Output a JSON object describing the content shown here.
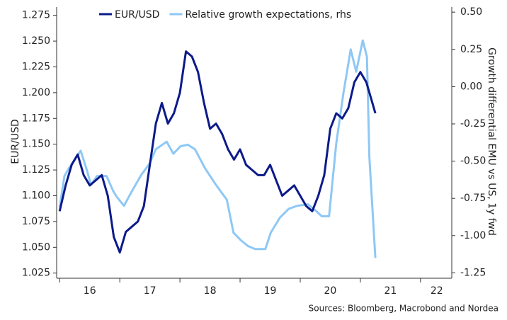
{
  "chart_data": {
    "type": "line",
    "y_axis_label": "EUR/USD",
    "y2_axis_label": "Growth differential EMU vs US, 1y fwd",
    "source": "Sources: Bloomberg, Macrobond and Nordea",
    "legend": "top",
    "xlim": [
      2015.95,
      2022.52
    ],
    "xticks": [
      {
        "value": 2016.5,
        "label": "16"
      },
      {
        "value": 2017.5,
        "label": "17"
      },
      {
        "value": 2018.5,
        "label": "18"
      },
      {
        "value": 2019.5,
        "label": "19"
      },
      {
        "value": 2020.5,
        "label": "20"
      },
      {
        "value": 2021.5,
        "label": "21"
      },
      {
        "value": 2022.27,
        "label": "22"
      }
    ],
    "x_tick_marks": [
      2016,
      2017,
      2018,
      2019,
      2020,
      2021,
      2022
    ],
    "ylim": [
      1.02,
      1.283
    ],
    "yticks": [
      {
        "value": 1.025,
        "label": "1.025"
      },
      {
        "value": 1.05,
        "label": "1.050"
      },
      {
        "value": 1.075,
        "label": "1.075"
      },
      {
        "value": 1.1,
        "label": "1.100"
      },
      {
        "value": 1.125,
        "label": "1.125"
      },
      {
        "value": 1.15,
        "label": "1.150"
      },
      {
        "value": 1.175,
        "label": "1.175"
      },
      {
        "value": 1.2,
        "label": "1.200"
      },
      {
        "value": 1.225,
        "label": "1.225"
      },
      {
        "value": 1.25,
        "label": "1.250"
      },
      {
        "value": 1.275,
        "label": "1.275"
      }
    ],
    "y2lim": [
      -1.286,
      0.534
    ],
    "y2ticks": [
      {
        "value": 0.5,
        "label": "0.50"
      },
      {
        "value": 0.25,
        "label": "0.25"
      },
      {
        "value": 0,
        "label": "0.00"
      },
      {
        "value": -0.25,
        "label": "-0.25"
      },
      {
        "value": -0.5,
        "label": "-0.50"
      },
      {
        "value": -0.75,
        "label": "-0.75"
      },
      {
        "value": -1,
        "label": "-1.00"
      },
      {
        "value": -1.25,
        "label": "-1.25"
      }
    ],
    "series": [
      {
        "name": "EUR/USD",
        "color": "#0c1a8a",
        "x": [
          2016.0,
          2016.1,
          2016.2,
          2016.3,
          2016.4,
          2016.5,
          2016.6,
          2016.7,
          2016.8,
          2016.9,
          2017.0,
          2017.1,
          2017.2,
          2017.3,
          2017.4,
          2017.5,
          2017.6,
          2017.7,
          2017.8,
          2017.9,
          2018.0,
          2018.1,
          2018.2,
          2018.3,
          2018.4,
          2018.5,
          2018.6,
          2018.7,
          2018.8,
          2018.9,
          2019.0,
          2019.1,
          2019.2,
          2019.3,
          2019.4,
          2019.5,
          2019.6,
          2019.7,
          2019.8,
          2019.9,
          2020.0,
          2020.1,
          2020.2,
          2020.3,
          2020.4,
          2020.5,
          2020.6,
          2020.7,
          2020.8,
          2020.9,
          2021.0,
          2021.1,
          2021.2,
          2021.25
        ],
        "values": [
          1.085,
          1.11,
          1.13,
          1.14,
          1.12,
          1.11,
          1.115,
          1.12,
          1.1,
          1.06,
          1.045,
          1.065,
          1.07,
          1.075,
          1.09,
          1.13,
          1.17,
          1.19,
          1.17,
          1.18,
          1.2,
          1.24,
          1.235,
          1.22,
          1.19,
          1.165,
          1.17,
          1.16,
          1.145,
          1.135,
          1.145,
          1.13,
          1.125,
          1.12,
          1.12,
          1.13,
          1.115,
          1.1,
          1.105,
          1.11,
          1.1,
          1.09,
          1.085,
          1.1,
          1.12,
          1.165,
          1.18,
          1.175,
          1.185,
          1.21,
          1.22,
          1.21,
          1.19,
          1.18
        ]
      },
      {
        "name": "Relative growth expectations, rhs",
        "color": "#8ec8f5",
        "axis": "y2",
        "x": [
          2016.0,
          2016.08,
          2016.15,
          2016.25,
          2016.35,
          2016.46,
          2016.52,
          2016.62,
          2016.78,
          2016.89,
          2016.95,
          2017.07,
          2017.19,
          2017.36,
          2017.49,
          2017.6,
          2017.78,
          2017.89,
          2018.01,
          2018.13,
          2018.25,
          2018.42,
          2018.6,
          2018.78,
          2018.89,
          2019.01,
          2019.13,
          2019.25,
          2019.42,
          2019.51,
          2019.66,
          2019.81,
          2019.95,
          2020.13,
          2020.25,
          2020.36,
          2020.48,
          2020.6,
          2020.72,
          2020.84,
          2020.93,
          2021.04,
          2021.11,
          2021.15,
          2021.25
        ],
        "values": [
          -0.81,
          -0.6,
          -0.55,
          -0.49,
          -0.43,
          -0.57,
          -0.66,
          -0.6,
          -0.6,
          -0.7,
          -0.74,
          -0.8,
          -0.71,
          -0.59,
          -0.52,
          -0.42,
          -0.37,
          -0.45,
          -0.4,
          -0.39,
          -0.42,
          -0.55,
          -0.66,
          -0.76,
          -0.98,
          -1.03,
          -1.07,
          -1.09,
          -1.09,
          -0.98,
          -0.88,
          -0.82,
          -0.8,
          -0.79,
          -0.83,
          -0.87,
          -0.87,
          -0.38,
          -0.04,
          0.25,
          0.1,
          0.31,
          0.2,
          -0.47,
          -1.15
        ]
      }
    ]
  }
}
